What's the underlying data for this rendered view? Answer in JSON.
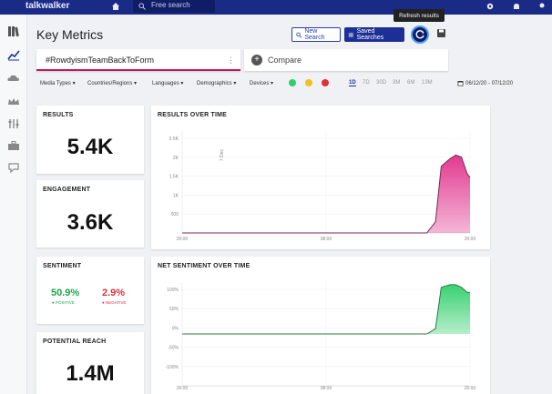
{
  "topbar": {
    "brand": "talkwalker",
    "search_placeholder": "Free search",
    "icons": [
      "home-icon",
      "search-icon",
      "settings-icon",
      "notifications-icon"
    ]
  },
  "sidebar": {
    "items": [
      "library-icon",
      "analytics-icon",
      "cloud-icon",
      "crown-icon",
      "filters-icon",
      "briefcase-icon",
      "reports-icon"
    ]
  },
  "header": {
    "title": "Key Metrics",
    "new_search": "New Search",
    "saved_searches": "Saved Searches",
    "refresh_tooltip": "Refresh results"
  },
  "query": {
    "value": "#RowdyismTeamBackToForm",
    "compare_label": "Compare"
  },
  "filters": {
    "items": [
      "Media Types",
      "Countries/Regions",
      "Languages",
      "Demographics",
      "Devices"
    ],
    "periods": [
      "1D",
      "7D",
      "30D",
      "3M",
      "6M",
      "13M"
    ],
    "active_period": "1D",
    "date_range": "06/12/20 - 07/12/20"
  },
  "cards": {
    "results": {
      "title": "RESULTS",
      "value": "5.4K"
    },
    "engagement": {
      "title": "ENGAGEMENT",
      "value": "3.6K"
    },
    "sentiment": {
      "title": "SENTIMENT",
      "positive": "50.9%",
      "positive_label": "POSITIVE",
      "negative": "2.9%",
      "negative_label": "NEGATIVE"
    },
    "reach": {
      "title": "POTENTIAL REACH",
      "value": "1.4M"
    }
  },
  "colors": {
    "accent": "#1d2f95",
    "results_fill": "#e0308a",
    "sentiment_fill": "#2fcf6a"
  },
  "chart_data": [
    {
      "type": "area",
      "title": "RESULTS OVER TIME",
      "annotation": "7 Dec",
      "y_ticks": [
        "2.5K",
        "2K",
        "1.5K",
        "1K",
        "500"
      ],
      "x_ticks": [
        "20:00",
        "08:00",
        "20:00"
      ],
      "ylim": [
        0,
        2750
      ],
      "x": [
        0,
        0.85,
        0.88,
        0.9,
        0.93,
        0.95,
        0.97,
        0.99,
        1.0
      ],
      "values": [
        0,
        0,
        300,
        1800,
        2000,
        2100,
        2050,
        1600,
        1500
      ],
      "color": "#e0308a"
    },
    {
      "type": "area",
      "title": "NET SENTIMENT OVER TIME",
      "y_ticks": [
        "100%",
        "50%",
        "0%",
        "-50%",
        "-100%"
      ],
      "x_ticks": [
        "20:00",
        "08:00",
        "20:00"
      ],
      "ylim": [
        -100,
        100
      ],
      "x": [
        0,
        0.85,
        0.88,
        0.9,
        0.93,
        0.95,
        0.97,
        0.99,
        1.0
      ],
      "values": [
        0,
        0,
        10,
        90,
        95,
        95,
        90,
        80,
        80
      ],
      "color": "#2fcf6a"
    }
  ]
}
